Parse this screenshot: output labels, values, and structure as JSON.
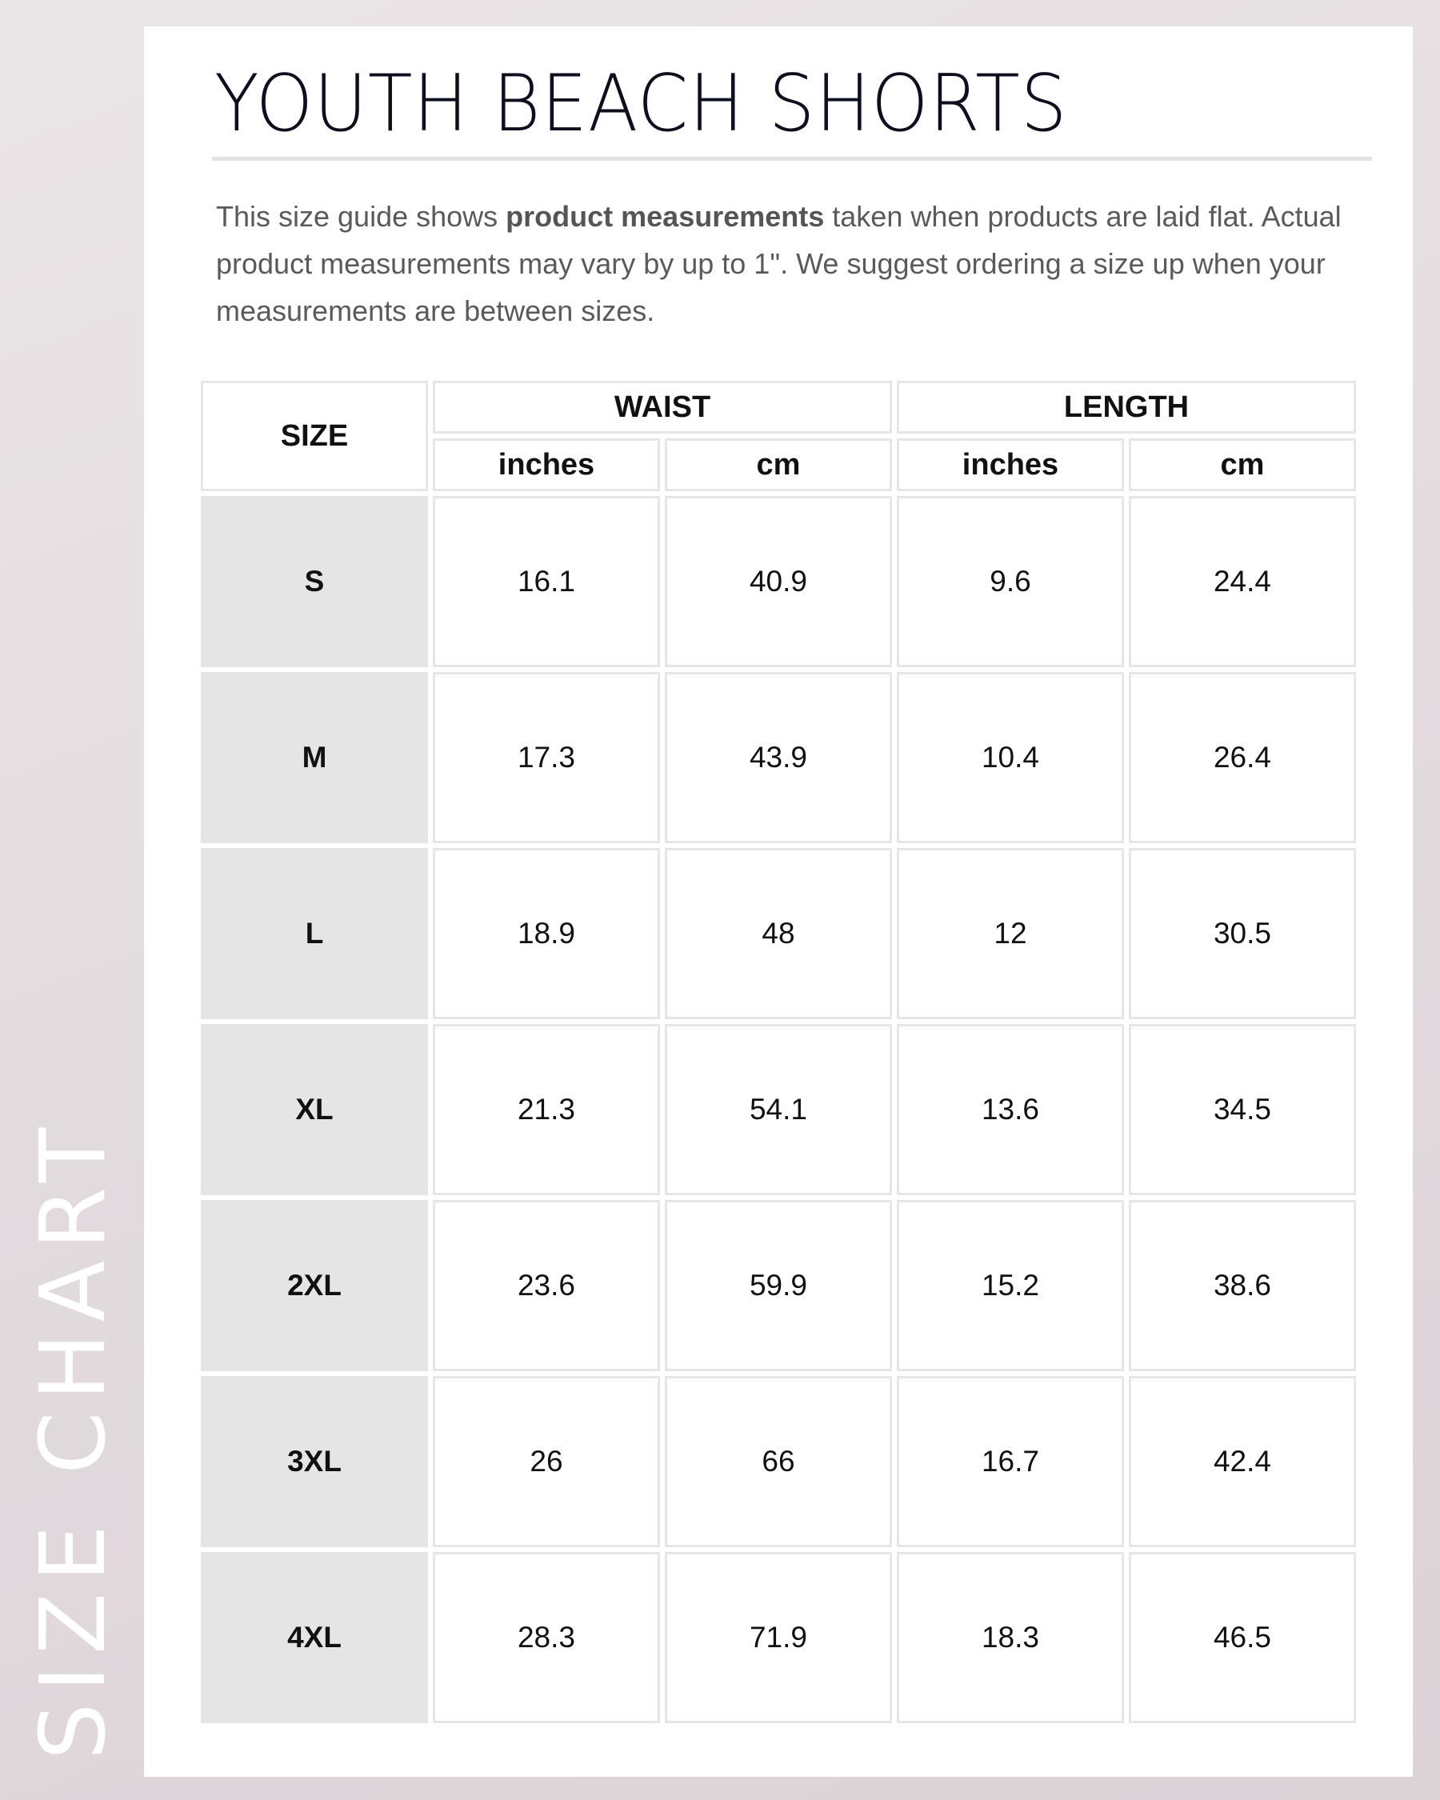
{
  "side_label": "SIZE CHART",
  "title": "YOUTH BEACH SHORTS",
  "description": {
    "before": "This size guide shows ",
    "bold": "product measurements",
    "after": " taken when products are laid flat. Actual product measurements may vary by up to 1\". We suggest ordering a size up when your measurements are between sizes."
  },
  "table": {
    "size_header": "SIZE",
    "groups": [
      "WAIST",
      "LENGTH"
    ],
    "units": [
      "inches",
      "cm",
      "inches",
      "cm"
    ],
    "rows": [
      [
        "S",
        "16.1",
        "40.9",
        "9.6",
        "24.4"
      ],
      [
        "M",
        "17.3",
        "43.9",
        "10.4",
        "26.4"
      ],
      [
        "L",
        "18.9",
        "48",
        "12",
        "30.5"
      ],
      [
        "XL",
        "21.3",
        "54.1",
        "13.6",
        "34.5"
      ],
      [
        "2XL",
        "23.6",
        "59.9",
        "15.2",
        "38.6"
      ],
      [
        "3XL",
        "26",
        "66",
        "16.7",
        "42.4"
      ],
      [
        "4XL",
        "28.3",
        "71.9",
        "18.3",
        "46.5"
      ]
    ]
  },
  "colors": {
    "size_cell_bg": "#e5e5e5",
    "border": "#e6e6e6",
    "title": "#0d0f1e"
  }
}
